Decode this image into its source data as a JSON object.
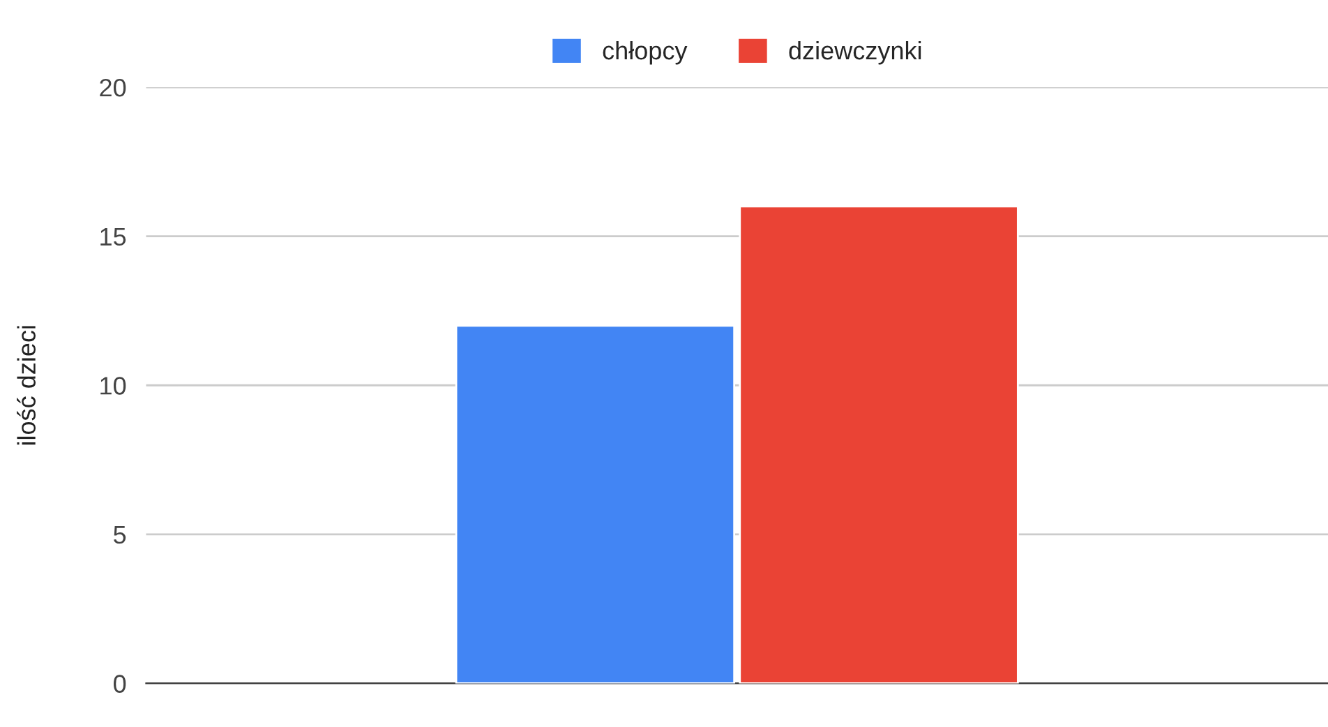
{
  "chart_data": {
    "type": "bar",
    "ylabel": "ilość dzieci",
    "categories": [
      null
    ],
    "series": [
      {
        "name": "chłopcy",
        "color": "#4285f4",
        "values": [
          12
        ]
      },
      {
        "name": "dziewczynki",
        "color": "#ea4335",
        "values": [
          16
        ]
      }
    ],
    "ylim": [
      0,
      20
    ],
    "yticks": [
      0,
      5,
      10,
      15,
      20
    ],
    "grid": "y",
    "legend": "top"
  }
}
